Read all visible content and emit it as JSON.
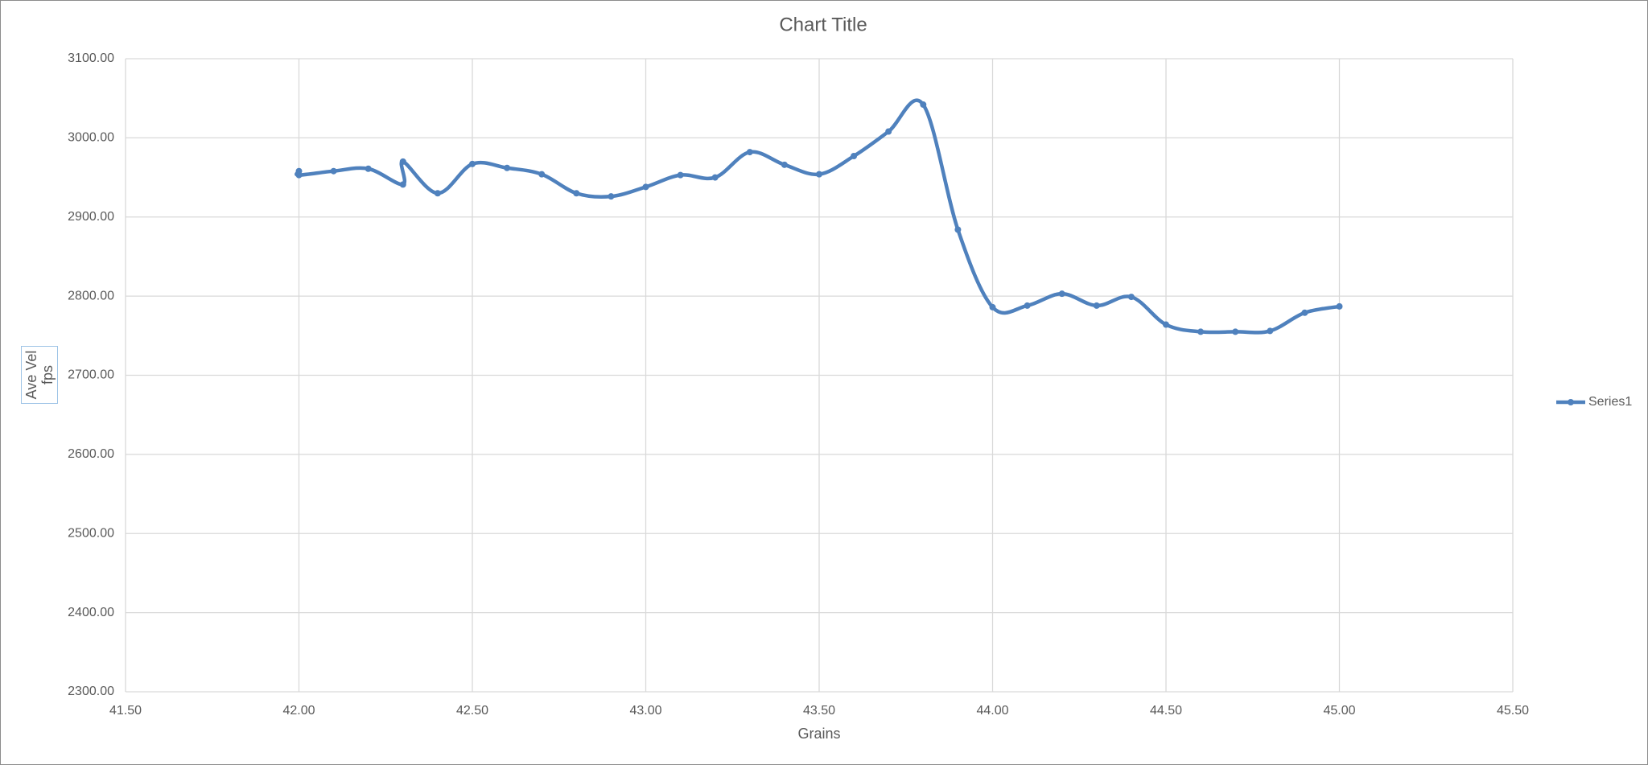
{
  "chart_data": {
    "type": "line",
    "title": "Chart Title",
    "xlabel": "Grains",
    "ylabel": "Ave Vel fps",
    "x": [
      42.0,
      42.0,
      42.1,
      42.2,
      42.3,
      42.3,
      42.4,
      42.5,
      42.6,
      42.7,
      42.8,
      42.9,
      43.0,
      43.1,
      43.2,
      43.3,
      43.4,
      43.5,
      43.6,
      43.7,
      43.8,
      43.9,
      44.0,
      44.1,
      44.2,
      44.3,
      44.4,
      44.5,
      44.6,
      44.7,
      44.8,
      44.9,
      45.0
    ],
    "series": [
      {
        "name": "Series1",
        "color": "#4f81bd",
        "values": [
          2958,
          2953,
          2958,
          2961,
          2941,
          2970,
          2930,
          2967,
          2962,
          2954,
          2930,
          2926,
          2938,
          2953,
          2950,
          2982,
          2966,
          2954,
          2977,
          3008,
          3042,
          2884,
          2786,
          2788,
          2803,
          2788,
          2799,
          2764,
          2755,
          2755,
          2756,
          2779,
          2787
        ]
      }
    ],
    "xlim": [
      41.5,
      45.5
    ],
    "xticks": [
      {
        "value": 41.5,
        "label": "41.50"
      },
      {
        "value": 42,
        "label": "42.00"
      },
      {
        "value": 42.5,
        "label": "42.50"
      },
      {
        "value": 43,
        "label": "43.00"
      },
      {
        "value": 43.5,
        "label": "43.50"
      },
      {
        "value": 44,
        "label": "44.00"
      },
      {
        "value": 44.5,
        "label": "44.50"
      },
      {
        "value": 45,
        "label": "45.00"
      },
      {
        "value": 45.5,
        "label": "45.50"
      }
    ],
    "ylim": [
      2300,
      3100
    ],
    "yticks": [
      {
        "value": 2300,
        "label": "2300.00"
      },
      {
        "value": 2400,
        "label": "2400.00"
      },
      {
        "value": 2500,
        "label": "2500.00"
      },
      {
        "value": 2600,
        "label": "2600.00"
      },
      {
        "value": 2700,
        "label": "2700.00"
      },
      {
        "value": 2800,
        "label": "2800.00"
      },
      {
        "value": 2900,
        "label": "2900.00"
      },
      {
        "value": 3000,
        "label": "3000.00"
      },
      {
        "value": 3100,
        "label": "3100.00"
      }
    ],
    "grid": true,
    "legend": "right",
    "smooth": true
  }
}
